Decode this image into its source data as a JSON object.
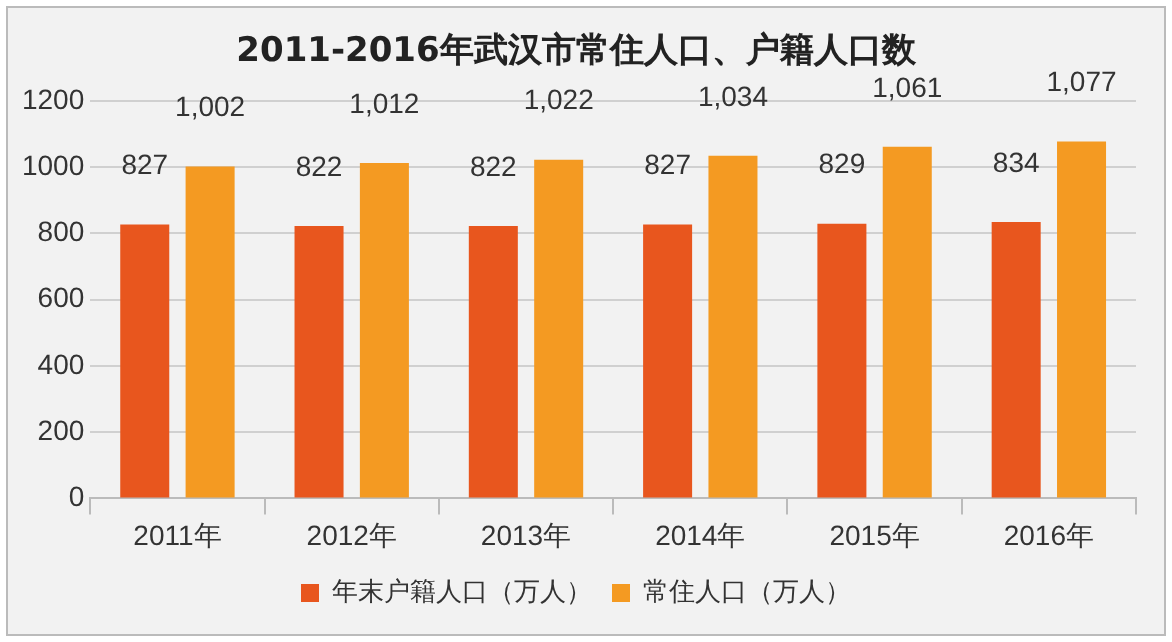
{
  "chart_data": {
    "type": "bar",
    "title": "2011-2016年武汉市常住人口、户籍人口数",
    "categories": [
      "2011年",
      "2012年",
      "2013年",
      "2014年",
      "2015年",
      "2016年"
    ],
    "series": [
      {
        "name": "年末户籍人口（万人）",
        "color": "#e8561e",
        "values": [
          827,
          822,
          822,
          827,
          829,
          834
        ],
        "value_labels": [
          "827",
          "822",
          "822",
          "827",
          "829",
          "834"
        ]
      },
      {
        "name": "常住人口（万人）",
        "color": "#f49a22",
        "values": [
          1002,
          1012,
          1022,
          1034,
          1061,
          1077
        ],
        "value_labels": [
          "1,002",
          "1,012",
          "1,022",
          "1,034",
          "1,061",
          "1,077"
        ]
      }
    ],
    "ylim": [
      0,
      1200
    ],
    "yticks": [
      0,
      200,
      400,
      600,
      800,
      1000,
      1200
    ],
    "grid": "y",
    "legend": "bottom"
  }
}
